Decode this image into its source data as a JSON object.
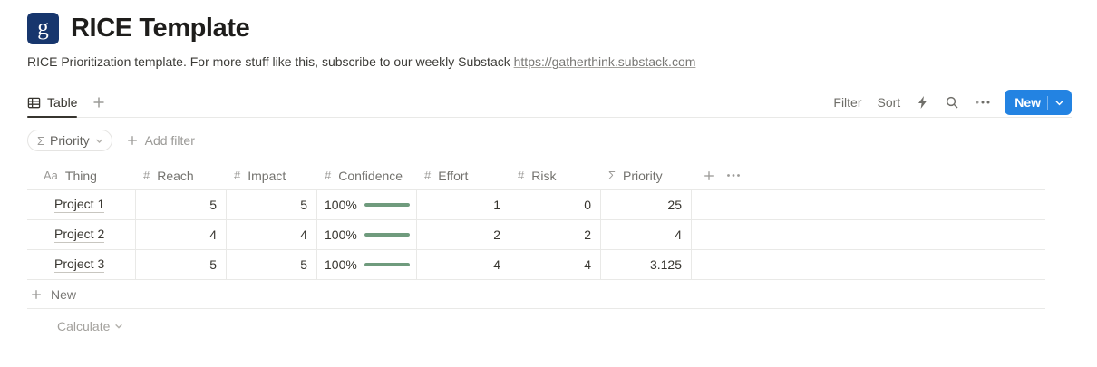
{
  "page": {
    "icon_letter": "g",
    "title": "RICE Template",
    "description_text": "RICE Prioritization template. For more stuff like this, subscribe to our weekly Substack",
    "description_link": "https://gatherthink.substack.com"
  },
  "toolbar": {
    "tab_label": "Table",
    "filter_label": "Filter",
    "sort_label": "Sort",
    "new_button_label": "New"
  },
  "filter_bar": {
    "sigma_icon": "Σ",
    "priority_filter_label": "Priority",
    "add_filter_label": "Add filter"
  },
  "table": {
    "columns": [
      {
        "icon": "Aa",
        "label": "Thing"
      },
      {
        "icon": "#",
        "label": "Reach"
      },
      {
        "icon": "#",
        "label": "Impact"
      },
      {
        "icon": "#",
        "label": "Confidence"
      },
      {
        "icon": "#",
        "label": "Effort"
      },
      {
        "icon": "#",
        "label": "Risk"
      },
      {
        "icon": "Σ",
        "label": "Priority"
      }
    ],
    "rows": [
      {
        "thing": "Project 1",
        "reach": "5",
        "impact": "5",
        "confidence": "100%",
        "confidence_pct": 100,
        "effort": "1",
        "risk": "0",
        "priority": "25"
      },
      {
        "thing": "Project 2",
        "reach": "4",
        "impact": "4",
        "confidence": "100%",
        "confidence_pct": 100,
        "effort": "2",
        "risk": "2",
        "priority": "4"
      },
      {
        "thing": "Project 3",
        "reach": "5",
        "impact": "5",
        "confidence": "100%",
        "confidence_pct": 100,
        "effort": "4",
        "risk": "4",
        "priority": "3.125"
      }
    ],
    "new_row_label": "New",
    "calculate_label": "Calculate"
  },
  "colors": {
    "accent_blue": "#2383e2",
    "progress_green": "#6f9b7d",
    "logo_navy": "#17366d"
  }
}
